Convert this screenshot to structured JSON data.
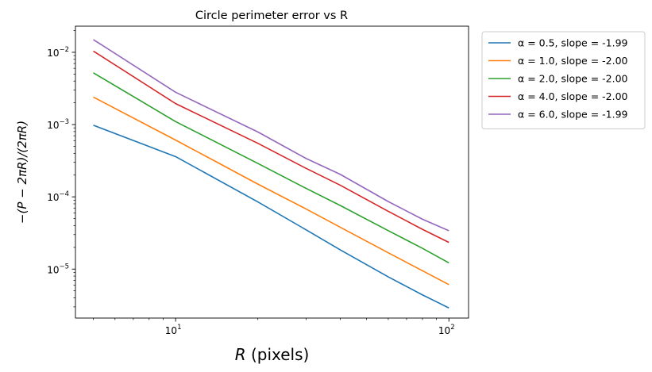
{
  "chart_data": {
    "type": "line",
    "title": "Circle perimeter error vs R",
    "xlabel": {
      "italic": "R",
      "rest": " (pixels)"
    },
    "ylabel": "−(P − 2πR)/(2πR)",
    "xscale": "log",
    "yscale": "log",
    "xlim": [
      4.3,
      118
    ],
    "ylim": [
      2.1e-06,
      0.023
    ],
    "x_ticks": [
      {
        "value": 10,
        "label_base": "10",
        "label_exp": "1"
      },
      {
        "value": 100,
        "label_base": "10",
        "label_exp": "2"
      }
    ],
    "y_ticks": [
      {
        "value": 1e-05,
        "label_base": "10",
        "label_exp": "−5"
      },
      {
        "value": 0.0001,
        "label_base": "10",
        "label_exp": "−4"
      },
      {
        "value": 0.001,
        "label_base": "10",
        "label_exp": "−3"
      },
      {
        "value": 0.01,
        "label_base": "10",
        "label_exp": "−2"
      }
    ],
    "grid": false,
    "legend_position": "outside-right-top",
    "x": [
      5,
      10,
      20,
      30,
      40,
      60,
      80,
      100
    ],
    "series": [
      {
        "name": "α = 0.5, slope = -1.99",
        "color": "#1f77b4",
        "values": [
          0.00098,
          0.00036,
          8.5e-05,
          3.5e-05,
          1.85e-05,
          7.8e-06,
          4.4e-06,
          2.9e-06
        ]
      },
      {
        "name": "α = 1.0, slope = -2.00",
        "color": "#ff7f0e",
        "values": [
          0.0024,
          0.00061,
          0.00015,
          6.8e-05,
          3.8e-05,
          1.68e-05,
          9.5e-06,
          6.1e-06
        ]
      },
      {
        "name": "α = 2.0, slope = -2.00",
        "color": "#2ca02c",
        "values": [
          0.0052,
          0.0011,
          0.00029,
          0.000131,
          7.6e-05,
          3.4e-05,
          1.94e-05,
          1.22e-05
        ]
      },
      {
        "name": "α = 4.0, slope = -2.00",
        "color": "#d62728",
        "values": [
          0.0104,
          0.00195,
          0.00055,
          0.000248,
          0.000145,
          6.3e-05,
          3.55e-05,
          2.34e-05
        ]
      },
      {
        "name": "α = 6.0, slope = -1.99",
        "color": "#9467bd",
        "values": [
          0.015,
          0.0028,
          0.00079,
          0.00034,
          0.000205,
          8.6e-05,
          4.9e-05,
          3.4e-05
        ]
      }
    ]
  }
}
